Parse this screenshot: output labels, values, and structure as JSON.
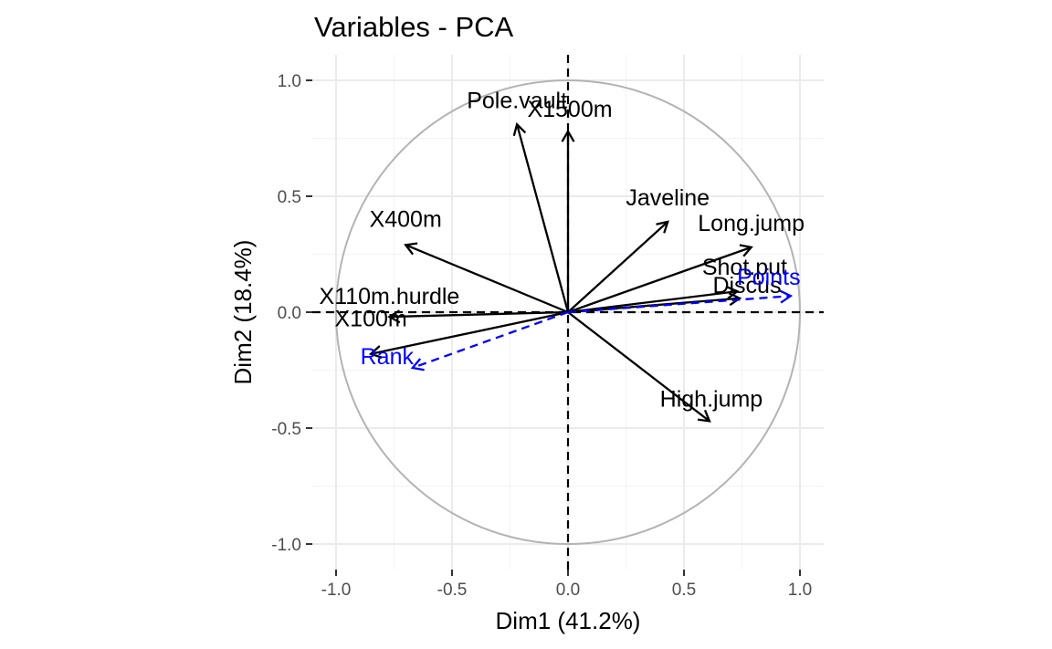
{
  "chart_data": {
    "type": "scatter",
    "subtype": "pca-variables-correlation-circle",
    "title": "Variables - PCA",
    "xlabel": "Dim1 (41.2%)",
    "ylabel": "Dim2 (18.4%)",
    "xlim": [
      -1.1,
      1.1
    ],
    "ylim": [
      -1.1,
      1.1
    ],
    "x_ticks": [
      -1.0,
      -0.5,
      0.0,
      0.5,
      1.0
    ],
    "y_ticks": [
      -1.0,
      -0.5,
      0.0,
      0.5,
      1.0
    ],
    "x_tick_labels": [
      "-1.0",
      "-0.5",
      "0.0",
      "0.5",
      "1.0"
    ],
    "y_tick_labels": [
      "-1.0",
      "-0.5",
      "0.0",
      "0.5",
      "1.0"
    ],
    "grid": true,
    "unit_circle": true,
    "reference_lines": {
      "x": 0,
      "y": 0,
      "style": "dashed"
    },
    "colors": {
      "active": "#000000",
      "supplementary": "#0000ff",
      "circle": "#b3b3b3"
    },
    "series": [
      {
        "group": "active",
        "points": [
          {
            "label": "X100m",
            "x": -0.85,
            "y": -0.18
          },
          {
            "label": "Long.jump",
            "x": 0.79,
            "y": 0.28
          },
          {
            "label": "Shot.put",
            "x": 0.73,
            "y": 0.09
          },
          {
            "label": "High.jump",
            "x": 0.61,
            "y": -0.47
          },
          {
            "label": "X400m",
            "x": -0.7,
            "y": 0.29
          },
          {
            "label": "X110m.hurdle",
            "x": -0.77,
            "y": -0.02
          },
          {
            "label": "Discus",
            "x": 0.74,
            "y": 0.06
          },
          {
            "label": "Pole.vault",
            "x": -0.22,
            "y": 0.81
          },
          {
            "label": "Javeline",
            "x": 0.43,
            "y": 0.39
          },
          {
            "label": "X1500m",
            "x": 0.0,
            "y": 0.78
          }
        ]
      },
      {
        "group": "supplementary",
        "points": [
          {
            "label": "Rank",
            "x": -0.67,
            "y": -0.24
          },
          {
            "label": "Points",
            "x": 0.96,
            "y": 0.07
          }
        ]
      }
    ]
  }
}
